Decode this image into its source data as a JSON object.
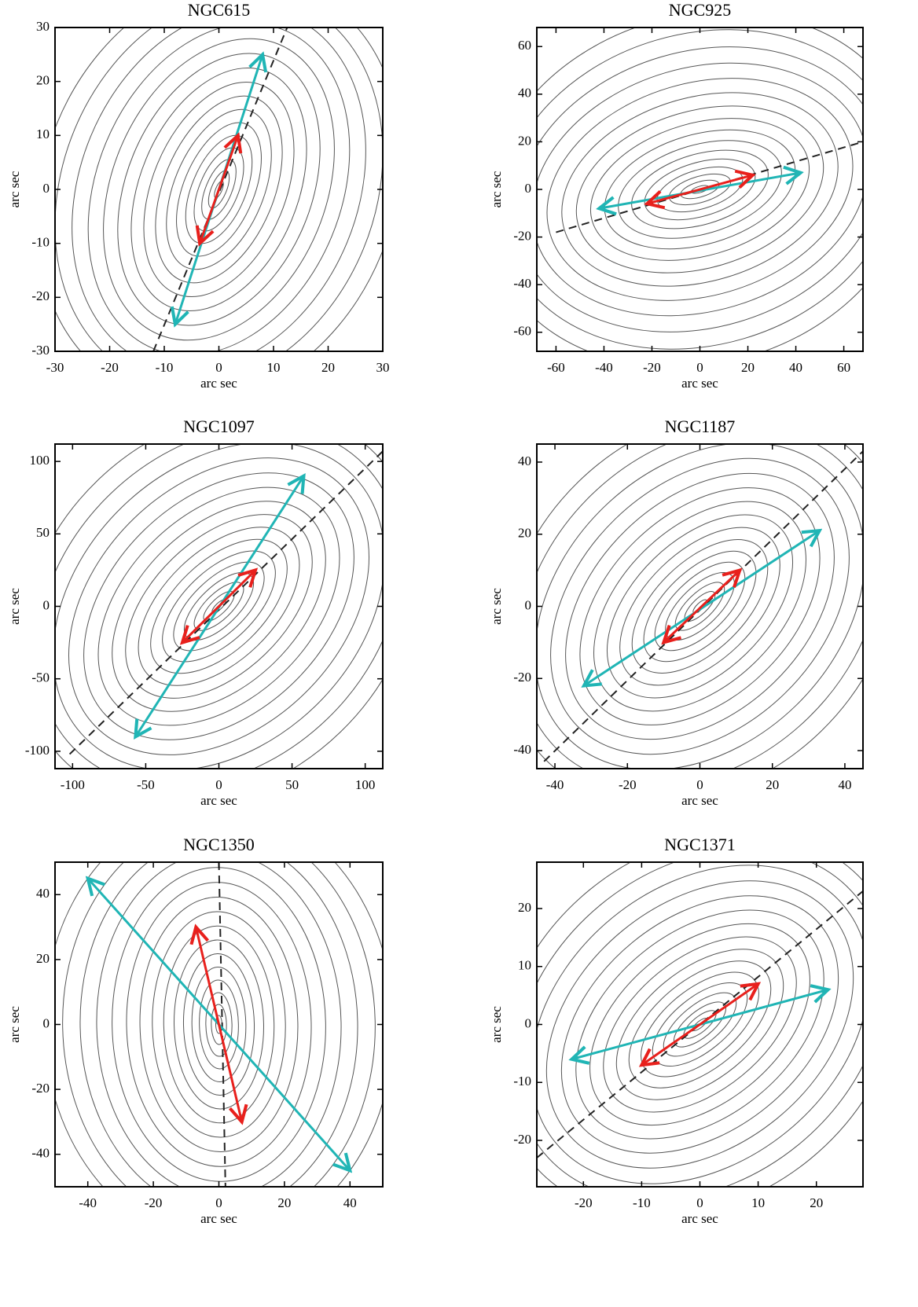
{
  "chart_data": [
    {
      "type": "contour",
      "title": "NGC615",
      "xlabel": "arc sec",
      "ylabel": "arc sec",
      "xlim": [
        -30,
        30
      ],
      "ylim": [
        -30,
        30
      ],
      "xticks": [
        -30,
        -20,
        -10,
        0,
        10,
        20,
        30
      ],
      "yticks": [
        -30,
        -20,
        -10,
        0,
        10,
        20,
        30
      ],
      "dashed_line": {
        "x": [
          -12,
          12.5
        ],
        "y": [
          -30,
          30
        ]
      },
      "arrows": [
        {
          "color": "#20b5b5",
          "x": [
            -8,
            8
          ],
          "y": [
            -25,
            25
          ]
        },
        {
          "color": "#e8201c",
          "x": [
            -3.5,
            3.5
          ],
          "y": [
            -10,
            10
          ]
        }
      ]
    },
    {
      "type": "contour",
      "title": "NGC925",
      "xlabel": "arc sec",
      "ylabel": "arc sec",
      "xlim": [
        -68,
        68
      ],
      "ylim": [
        -68,
        68
      ],
      "xticks": [
        -60,
        -40,
        -20,
        0,
        20,
        40,
        60
      ],
      "yticks": [
        -60,
        -40,
        -20,
        0,
        20,
        40,
        60
      ],
      "dashed_line": {
        "x": [
          -60,
          68
        ],
        "y": [
          -18,
          20
        ]
      },
      "arrows": [
        {
          "color": "#20b5b5",
          "x": [
            -42,
            42
          ],
          "y": [
            -8,
            7
          ]
        },
        {
          "color": "#e8201c",
          "x": [
            -22,
            22
          ],
          "y": [
            -6,
            6
          ]
        }
      ]
    },
    {
      "type": "contour",
      "title": "NGC1097",
      "xlabel": "arc sec",
      "ylabel": "arc sec",
      "xlim": [
        -112,
        112
      ],
      "ylim": [
        -112,
        112
      ],
      "xticks": [
        -100,
        -50,
        0,
        50,
        100
      ],
      "yticks": [
        -100,
        -50,
        0,
        50,
        100
      ],
      "dashed_line": {
        "x": [
          -102,
          112
        ],
        "y": [
          -102,
          107
        ]
      },
      "arrows": [
        {
          "color": "#20b5b5",
          "x": [
            -57,
            58
          ],
          "y": [
            -90,
            90
          ]
        },
        {
          "color": "#e8201c",
          "x": [
            -25,
            25
          ],
          "y": [
            -25,
            25
          ]
        }
      ]
    },
    {
      "type": "contour",
      "title": "NGC1187",
      "xlabel": "arc sec",
      "ylabel": "arc sec",
      "xlim": [
        -45,
        45
      ],
      "ylim": [
        -45,
        45
      ],
      "xticks": [
        -40,
        -20,
        0,
        20,
        40
      ],
      "yticks": [
        -40,
        -20,
        0,
        20,
        40
      ],
      "dashed_line": {
        "x": [
          -43,
          45
        ],
        "y": [
          -43,
          43
        ]
      },
      "arrows": [
        {
          "color": "#20b5b5",
          "x": [
            -32,
            33
          ],
          "y": [
            -22,
            21
          ]
        },
        {
          "color": "#e8201c",
          "x": [
            -10,
            11
          ],
          "y": [
            -10,
            10
          ]
        }
      ]
    },
    {
      "type": "contour",
      "title": "NGC1350",
      "xlabel": "arc sec",
      "ylabel": "arc sec",
      "xlim": [
        -50,
        50
      ],
      "ylim": [
        -50,
        50
      ],
      "xticks": [
        -40,
        -20,
        0,
        20,
        40
      ],
      "yticks": [
        -40,
        -20,
        0,
        20,
        40
      ],
      "dashed_line": {
        "x": [
          0,
          2
        ],
        "y": [
          50,
          -50
        ]
      },
      "arrows": [
        {
          "color": "#20b5b5",
          "x": [
            -40,
            40
          ],
          "y": [
            45,
            -45
          ]
        },
        {
          "color": "#e8201c",
          "x": [
            -7,
            7
          ],
          "y": [
            30,
            -30
          ]
        }
      ]
    },
    {
      "type": "contour",
      "title": "NGC1371",
      "xlabel": "arc sec",
      "ylabel": "arc sec",
      "xlim": [
        -28,
        28
      ],
      "ylim": [
        -28,
        28
      ],
      "xticks": [
        -20,
        -10,
        0,
        10,
        20
      ],
      "yticks": [
        -20,
        -10,
        0,
        10,
        20
      ],
      "dashed_line": {
        "x": [
          -28,
          28
        ],
        "y": [
          -23,
          23
        ]
      },
      "arrows": [
        {
          "color": "#20b5b5",
          "x": [
            -22,
            22
          ],
          "y": [
            -6,
            6
          ]
        },
        {
          "color": "#e8201c",
          "x": [
            -10,
            10
          ],
          "y": [
            -7,
            7
          ]
        }
      ]
    }
  ]
}
